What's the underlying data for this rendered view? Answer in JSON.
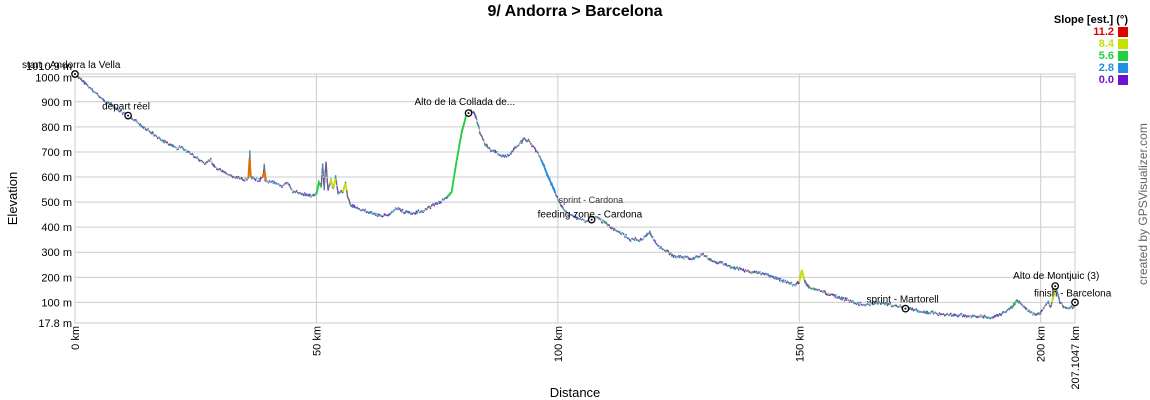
{
  "chart_data": {
    "type": "area",
    "title": "9/ Andorra > Barcelona",
    "xlabel": "Distance",
    "ylabel": "Elevation",
    "xlim": [
      0,
      207.1047
    ],
    "ylim": [
      17.8,
      1010.9
    ],
    "x_ticks": [
      {
        "value": 0,
        "label": "0 km"
      },
      {
        "value": 50,
        "label": "50 km"
      },
      {
        "value": 100,
        "label": "100 km"
      },
      {
        "value": 150,
        "label": "150 km"
      },
      {
        "value": 200,
        "label": "200 km"
      },
      {
        "value": 207.1047,
        "label": "207.1047 km"
      }
    ],
    "y_ticks": [
      {
        "value": 17.8,
        "label": "17.8 m"
      },
      {
        "value": 100,
        "label": "100 m"
      },
      {
        "value": 200,
        "label": "200 m"
      },
      {
        "value": 300,
        "label": "300 m"
      },
      {
        "value": 400,
        "label": "400 m"
      },
      {
        "value": 500,
        "label": "500 m"
      },
      {
        "value": 600,
        "label": "600 m"
      },
      {
        "value": 700,
        "label": "700 m"
      },
      {
        "value": 800,
        "label": "800 m"
      },
      {
        "value": 900,
        "label": "900 m"
      },
      {
        "value": 1000,
        "label": "1000 m"
      },
      {
        "value": 1010.9,
        "label": "1010.9 m"
      }
    ],
    "grid": true,
    "legend": {
      "title": "Slope [est.] (°)",
      "placement": "top-right",
      "entries": [
        {
          "label": "11.2",
          "color": "#e00000"
        },
        {
          "label": "8.4",
          "color": "#c8e000"
        },
        {
          "label": "5.6",
          "color": "#20d040"
        },
        {
          "label": "2.8",
          "color": "#2090e0"
        },
        {
          "label": "0.0",
          "color": "#7010d0"
        }
      ]
    },
    "profile": [
      [
        0,
        1010.9
      ],
      [
        2,
        975
      ],
      [
        4,
        940
      ],
      [
        6,
        905
      ],
      [
        8,
        880
      ],
      [
        10,
        855
      ],
      [
        11,
        845
      ],
      [
        13,
        815
      ],
      [
        15,
        790
      ],
      [
        17,
        760
      ],
      [
        19,
        735
      ],
      [
        21,
        715
      ],
      [
        22,
        720
      ],
      [
        23,
        705
      ],
      [
        25,
        680
      ],
      [
        27,
        650
      ],
      [
        28,
        670
      ],
      [
        29,
        640
      ],
      [
        31,
        615
      ],
      [
        33,
        600
      ],
      [
        35,
        590
      ],
      [
        36,
        595
      ],
      [
        36.2,
        700
      ],
      [
        36.4,
        600
      ],
      [
        38,
        585
      ],
      [
        39,
        600
      ],
      [
        39.2,
        655
      ],
      [
        39.4,
        585
      ],
      [
        41,
        580
      ],
      [
        43,
        565
      ],
      [
        44,
        575
      ],
      [
        45,
        545
      ],
      [
        47,
        535
      ],
      [
        49,
        525
      ],
      [
        50,
        530
      ],
      [
        50.5,
        580
      ],
      [
        51,
        560
      ],
      [
        51.3,
        650
      ],
      [
        51.6,
        555
      ],
      [
        52,
        660
      ],
      [
        52.4,
        545
      ],
      [
        53,
        590
      ],
      [
        53.5,
        555
      ],
      [
        54,
        600
      ],
      [
        54.5,
        530
      ],
      [
        55,
        545
      ],
      [
        55.5,
        540
      ],
      [
        56,
        575
      ],
      [
        56.5,
        520
      ],
      [
        57,
        490
      ],
      [
        59,
        470
      ],
      [
        61,
        460
      ],
      [
        63,
        445
      ],
      [
        65,
        450
      ],
      [
        67,
        480
      ],
      [
        68,
        460
      ],
      [
        70,
        455
      ],
      [
        72,
        465
      ],
      [
        74,
        485
      ],
      [
        76,
        505
      ],
      [
        77,
        520
      ],
      [
        78,
        540
      ],
      [
        79,
        660
      ],
      [
        80,
        770
      ],
      [
        81,
        845
      ],
      [
        82,
        870
      ],
      [
        83,
        840
      ],
      [
        84,
        770
      ],
      [
        85,
        730
      ],
      [
        86,
        710
      ],
      [
        88,
        690
      ],
      [
        89,
        680
      ],
      [
        90,
        690
      ],
      [
        91,
        710
      ],
      [
        92,
        730
      ],
      [
        93,
        750
      ],
      [
        94,
        745
      ],
      [
        95,
        720
      ],
      [
        96,
        690
      ],
      [
        97,
        650
      ],
      [
        98,
        600
      ],
      [
        99,
        560
      ],
      [
        100,
        510
      ],
      [
        101,
        475
      ],
      [
        102,
        455
      ],
      [
        103,
        445
      ],
      [
        104,
        435
      ],
      [
        105,
        430
      ],
      [
        106,
        425
      ],
      [
        107,
        430
      ],
      [
        108,
        440
      ],
      [
        109,
        425
      ],
      [
        110,
        415
      ],
      [
        111,
        400
      ],
      [
        112,
        385
      ],
      [
        113,
        375
      ],
      [
        114,
        365
      ],
      [
        115,
        350
      ],
      [
        116,
        355
      ],
      [
        117,
        345
      ],
      [
        118,
        360
      ],
      [
        119,
        380
      ],
      [
        120,
        345
      ],
      [
        121,
        320
      ],
      [
        122,
        310
      ],
      [
        124,
        285
      ],
      [
        126,
        280
      ],
      [
        128,
        275
      ],
      [
        130,
        290
      ],
      [
        132,
        265
      ],
      [
        134,
        255
      ],
      [
        136,
        240
      ],
      [
        138,
        230
      ],
      [
        140,
        222
      ],
      [
        142,
        215
      ],
      [
        144,
        205
      ],
      [
        146,
        190
      ],
      [
        148,
        175
      ],
      [
        149,
        170
      ],
      [
        150,
        180
      ],
      [
        150.5,
        230
      ],
      [
        151,
        190
      ],
      [
        152,
        160
      ],
      [
        154,
        150
      ],
      [
        156,
        135
      ],
      [
        158,
        120
      ],
      [
        160,
        110
      ],
      [
        162,
        95
      ],
      [
        164,
        90
      ],
      [
        166,
        100
      ],
      [
        168,
        95
      ],
      [
        170,
        85
      ],
      [
        172,
        80
      ],
      [
        174,
        70
      ],
      [
        176,
        60
      ],
      [
        178,
        58
      ],
      [
        180,
        52
      ],
      [
        182,
        50
      ],
      [
        184,
        48
      ],
      [
        186,
        45
      ],
      [
        188,
        42
      ],
      [
        190,
        40
      ],
      [
        192,
        55
      ],
      [
        194,
        80
      ],
      [
        195,
        105
      ],
      [
        196,
        95
      ],
      [
        197,
        70
      ],
      [
        198,
        60
      ],
      [
        199,
        50
      ],
      [
        200,
        55
      ],
      [
        201,
        90
      ],
      [
        201.5,
        100
      ],
      [
        202,
        85
      ],
      [
        202.5,
        110
      ],
      [
        203,
        160
      ],
      [
        203.5,
        140
      ],
      [
        204,
        100
      ],
      [
        205,
        80
      ],
      [
        206,
        75
      ],
      [
        207.1047,
        85
      ]
    ],
    "slope_segments": [
      {
        "from": 35.9,
        "to": 36.5,
        "color": "#e07000"
      },
      {
        "from": 38.8,
        "to": 39.6,
        "color": "#e07000"
      },
      {
        "from": 50.0,
        "to": 51.0,
        "color": "#20d040"
      },
      {
        "from": 52.8,
        "to": 54.2,
        "color": "#c8e000"
      },
      {
        "from": 55.5,
        "to": 56.4,
        "color": "#c8e000"
      },
      {
        "from": 77.0,
        "to": 81.5,
        "color": "#20d040"
      },
      {
        "from": 96.5,
        "to": 99.5,
        "color": "#2090e0"
      },
      {
        "from": 150.0,
        "to": 151.0,
        "color": "#c8e000"
      },
      {
        "from": 194.0,
        "to": 195.2,
        "color": "#20d040"
      },
      {
        "from": 202.3,
        "to": 203.2,
        "color": "#c8e000"
      }
    ],
    "waypoints": [
      {
        "x": 0,
        "y": 1010.9,
        "label": "start - Andorra la Vella"
      },
      {
        "x": 11,
        "y": 845,
        "label": "départ réel"
      },
      {
        "x": 81.5,
        "y": 855,
        "label": "Alto de la Collada de..."
      },
      {
        "x": 107,
        "y": 430,
        "label": "feeding zone - Cardona"
      },
      {
        "x": 107,
        "y": 445,
        "label": "sprint - Cardona"
      },
      {
        "x": 172,
        "y": 75,
        "label": "sprint - Martorell"
      },
      {
        "x": 203,
        "y": 165,
        "label": "Alto de Montjuic (3)"
      },
      {
        "x": 207.1047,
        "y": 100,
        "label": "finish - Barcelona"
      }
    ]
  },
  "credit": "created by GPSVisualizer.com"
}
